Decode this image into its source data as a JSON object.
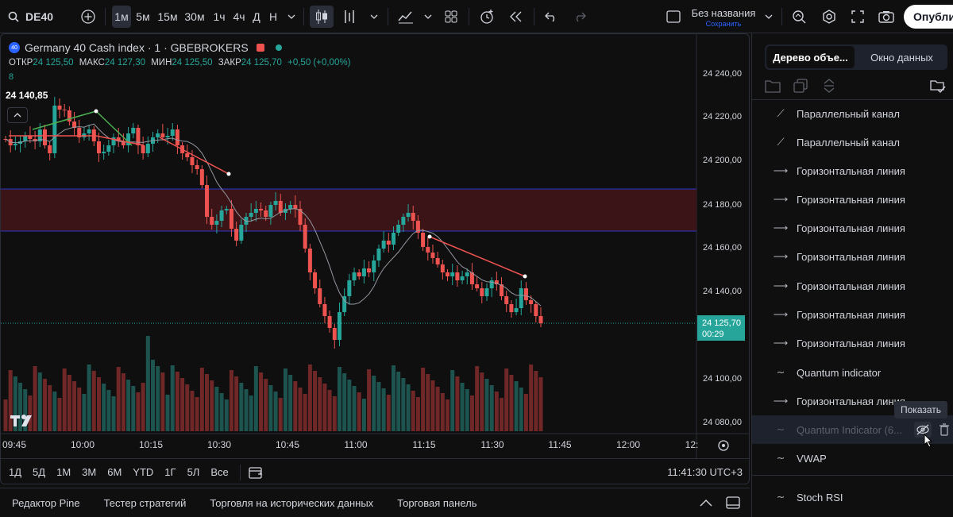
{
  "topbar": {
    "symbol": "DE40",
    "intervals": [
      "1м",
      "5м",
      "15м",
      "30м",
      "1ч",
      "4ч",
      "Д",
      "Н"
    ],
    "active_interval": "1м",
    "layout_name": "Без названия",
    "layout_status": "Сохранить",
    "publish_label": "Опублик"
  },
  "legend": {
    "badge": "40",
    "title": "Germany 40 Cash index · 1 · GBEBROKERS",
    "ohlc": [
      {
        "k": "ОТКР",
        "v": "24 125,50"
      },
      {
        "k": "МАКС",
        "v": "24 127,30"
      },
      {
        "k": "МИН",
        "v": "24 125,50"
      },
      {
        "k": "ЗАКР",
        "v": "24 125,70"
      },
      {
        "k": "",
        "v": "+0,50 (+0,00%)"
      }
    ],
    "indicator_count": "8",
    "crosshair_price": "24 140,85"
  },
  "price_axis": {
    "ticks": [
      "24 240,00",
      "24 220,00",
      "24 200,00",
      "24 180,00",
      "24 160,00",
      "24 140,00",
      "24 100,00",
      "24 080,00"
    ],
    "last_price": "24 125,70",
    "countdown": "00:29"
  },
  "time_axis": {
    "ticks": [
      "09:45",
      "10:00",
      "10:15",
      "10:30",
      "10:45",
      "11:00",
      "11:15",
      "11:30",
      "11:45",
      "12:00",
      "12:"
    ]
  },
  "range_bar": {
    "ranges": [
      "1Д",
      "5Д",
      "1М",
      "3М",
      "6М",
      "YTD",
      "1Г",
      "5Л",
      "Все"
    ],
    "clock": "11:41:30 UTC+3"
  },
  "bottom_tabs": [
    "Редактор Pine",
    "Тестер стратегий",
    "Торговля на исторических данных",
    "Торговая панель"
  ],
  "right_panel": {
    "tabs": [
      "Дерево объе...",
      "Окно данных"
    ],
    "objects": [
      {
        "label": "Параллельный канал",
        "icon": "channel-icon"
      },
      {
        "label": "Параллельный канал",
        "icon": "channel-icon"
      },
      {
        "label": "Горизонтальная линия",
        "icon": "hline-icon"
      },
      {
        "label": "Горизонтальная линия",
        "icon": "hline-icon"
      },
      {
        "label": "Горизонтальная линия",
        "icon": "hline-icon"
      },
      {
        "label": "Горизонтальная линия",
        "icon": "hline-icon"
      },
      {
        "label": "Горизонтальная линия",
        "icon": "hline-icon"
      },
      {
        "label": "Горизонтальная линия",
        "icon": "hline-icon"
      },
      {
        "label": "Горизонтальная линия",
        "icon": "hline-icon"
      },
      {
        "label": "Quantum indicator",
        "icon": "wave-icon"
      },
      {
        "label": "Горизонтальная линия",
        "icon": "hline-icon"
      },
      {
        "label": "Quantum Indicator (6...",
        "icon": "wave-icon"
      },
      {
        "label": "VWAP",
        "icon": "wave-icon"
      },
      {
        "label": "Stoch RSI",
        "icon": "wave-icon"
      }
    ],
    "tooltip": "Показать"
  },
  "colors": {
    "up": "#26a69a",
    "down": "#ef5350",
    "accent": "#2962ff",
    "zone": "#3a1416",
    "zone_line": "#2a36c9"
  }
}
